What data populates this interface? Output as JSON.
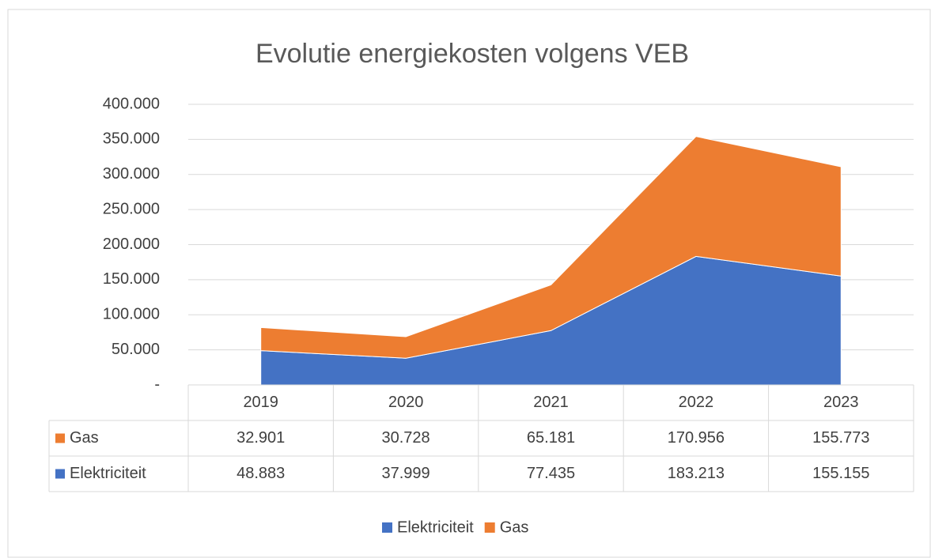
{
  "chart_data": {
    "type": "stacked-area",
    "title": "Evolutie energiekosten volgens VEB",
    "categories": [
      "2019",
      "2020",
      "2021",
      "2022",
      "2023"
    ],
    "series": [
      {
        "name": "Elektriciteit",
        "color": "#4472c4",
        "values": [
          48883,
          37999,
          77435,
          183213,
          155155
        ],
        "value_labels": [
          "48.883",
          "37.999",
          "77.435",
          "183.213",
          "155.155"
        ]
      },
      {
        "name": "Gas",
        "color": "#ed7d31",
        "values": [
          32901,
          30728,
          65181,
          170956,
          155773
        ],
        "value_labels": [
          "32.901",
          "30.728",
          "65.181",
          "170.956",
          "155.773"
        ]
      }
    ],
    "ylim": [
      0,
      400000
    ],
    "yticks": [
      {
        "value": 0,
        "label": "-"
      },
      {
        "value": 50000,
        "label": "50.000"
      },
      {
        "value": 100000,
        "label": "100.000"
      },
      {
        "value": 150000,
        "label": "150.000"
      },
      {
        "value": 200000,
        "label": "200.000"
      },
      {
        "value": 250000,
        "label": "250.000"
      },
      {
        "value": 300000,
        "label": "300.000"
      },
      {
        "value": 350000,
        "label": "350.000"
      },
      {
        "value": 400000,
        "label": "400.000"
      }
    ],
    "grid": true,
    "legend": "bottom"
  }
}
